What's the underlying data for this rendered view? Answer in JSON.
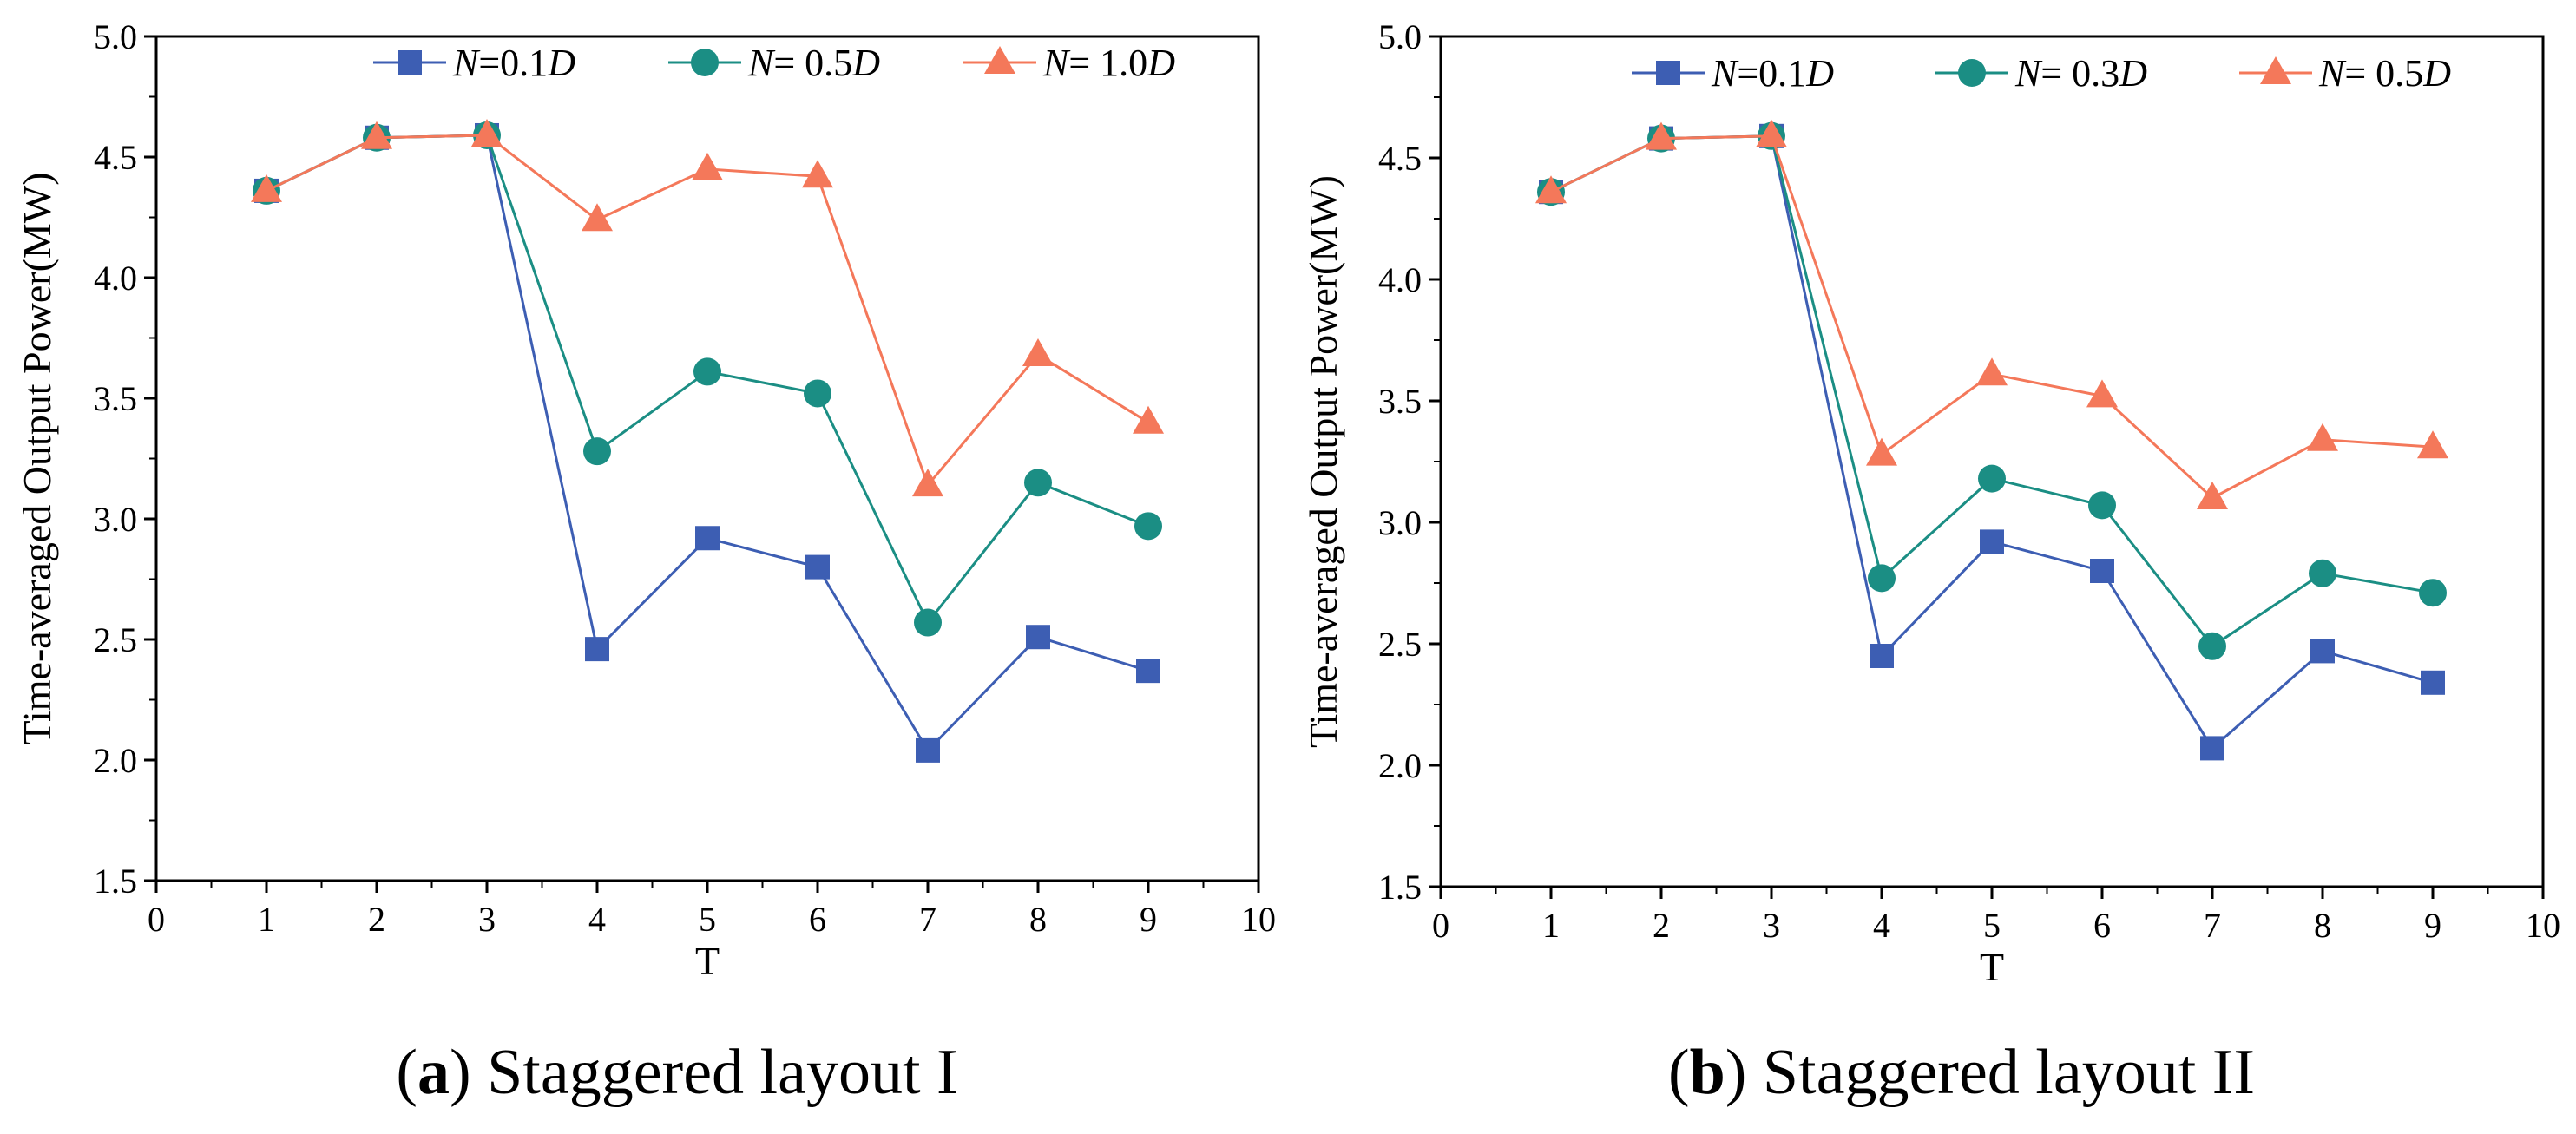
{
  "chart_data": [
    {
      "type": "line",
      "caption": {
        "letter": "a",
        "text": "Staggered layout I"
      },
      "xlabel": "T",
      "ylabel": "Time-averaged Output Power(MW)",
      "xlim": [
        0,
        10
      ],
      "ylim": [
        1.5,
        5.0
      ],
      "xticks": [
        "0",
        "1",
        "2",
        "3",
        "4",
        "5",
        "6",
        "7",
        "8",
        "9",
        "10"
      ],
      "yticks": [
        "1.5",
        "2.0",
        "2.5",
        "3.0",
        "3.5",
        "4.0",
        "4.5",
        "5.0"
      ],
      "grid": false,
      "legend_position": "top",
      "x": [
        1,
        2,
        3,
        4,
        5,
        6,
        7,
        8,
        9
      ],
      "series": [
        {
          "name": "N=0.1D",
          "legend": {
            "var": "N",
            "eq": "=0.1",
            "unit": "D"
          },
          "marker": "square",
          "color": "#3d5eb3",
          "values": [
            4.36,
            4.58,
            4.59,
            2.46,
            2.92,
            2.8,
            2.04,
            2.51,
            2.37
          ]
        },
        {
          "name": "N= 0.5D",
          "legend": {
            "var": "N",
            "eq": "= 0.5",
            "unit": "D"
          },
          "marker": "circle",
          "color": "#1b8e84",
          "values": [
            4.36,
            4.58,
            4.59,
            3.28,
            3.61,
            3.52,
            2.57,
            3.15,
            2.97
          ]
        },
        {
          "name": "N= 1.0D",
          "legend": {
            "var": "N",
            "eq": "= 1.0",
            "unit": "D"
          },
          "marker": "triangle",
          "color": "#f4785a",
          "values": [
            4.36,
            4.58,
            4.59,
            4.24,
            4.45,
            4.42,
            3.14,
            3.68,
            3.4
          ]
        }
      ]
    },
    {
      "type": "line",
      "caption": {
        "letter": "b",
        "text": "Staggered layout II"
      },
      "xlabel": "T",
      "ylabel": "Time-averaged Output Power(MW)",
      "xlim": [
        0,
        10
      ],
      "ylim": [
        1.5,
        5.0
      ],
      "xticks": [
        "0",
        "1",
        "2",
        "3",
        "4",
        "5",
        "6",
        "7",
        "8",
        "9",
        "10"
      ],
      "yticks": [
        "1.5",
        "2.0",
        "2.5",
        "3.0",
        "3.5",
        "4.0",
        "4.5",
        "5.0"
      ],
      "grid": false,
      "legend_position": "top",
      "x": [
        1,
        2,
        3,
        4,
        5,
        6,
        7,
        8,
        9
      ],
      "series": [
        {
          "name": "N=0.1D",
          "legend": {
            "var": "N",
            "eq": "=0.1",
            "unit": "D"
          },
          "marker": "square",
          "color": "#3d5eb3",
          "values": [
            4.36,
            4.58,
            4.59,
            2.45,
            2.92,
            2.8,
            2.07,
            2.47,
            2.34
          ]
        },
        {
          "name": "N= 0.3D",
          "legend": {
            "var": "N",
            "eq": "= 0.3",
            "unit": "D"
          },
          "marker": "circle",
          "color": "#1b8e84",
          "values": [
            4.36,
            4.58,
            4.59,
            2.77,
            3.18,
            3.07,
            2.49,
            2.79,
            2.71
          ]
        },
        {
          "name": "N= 0.5D",
          "legend": {
            "var": "N",
            "eq": "= 0.5",
            "unit": "D"
          },
          "marker": "triangle",
          "color": "#f4785a",
          "values": [
            4.36,
            4.58,
            4.59,
            3.28,
            3.61,
            3.52,
            3.1,
            3.34,
            3.31
          ]
        }
      ]
    }
  ]
}
